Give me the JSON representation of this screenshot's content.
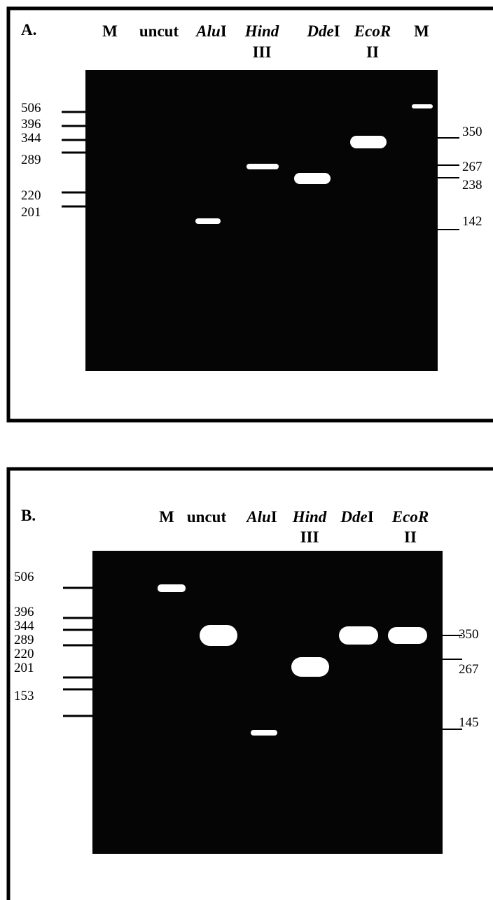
{
  "panels": [
    {
      "label": "A.",
      "lanes": [
        {
          "text": "M"
        },
        {
          "text": "uncut"
        },
        {
          "italic": "Alu",
          "text": "I"
        },
        {
          "italic": "Hind",
          "line2": "III"
        },
        {
          "italic": "Dde",
          "text": "I"
        },
        {
          "italic": "EcoR",
          "line2": "II"
        },
        {
          "text": "M"
        }
      ],
      "left_markers": [
        "506",
        "396",
        "344",
        "289",
        "220",
        "201"
      ],
      "right_markers": [
        "350",
        "267",
        "238",
        "142"
      ]
    },
    {
      "label": "B.",
      "lanes": [
        {
          "text": "M"
        },
        {
          "text": "uncut"
        },
        {
          "italic": "Alu",
          "text": "I"
        },
        {
          "italic": "Hind",
          "line2": "III"
        },
        {
          "italic": "Dde",
          "text": "I"
        },
        {
          "italic": "EcoR",
          "line2": "II"
        }
      ],
      "left_markers": [
        "506",
        "396",
        "344",
        "289",
        "220",
        "201",
        "153"
      ],
      "right_markers": [
        "350",
        "267",
        "145"
      ]
    }
  ]
}
